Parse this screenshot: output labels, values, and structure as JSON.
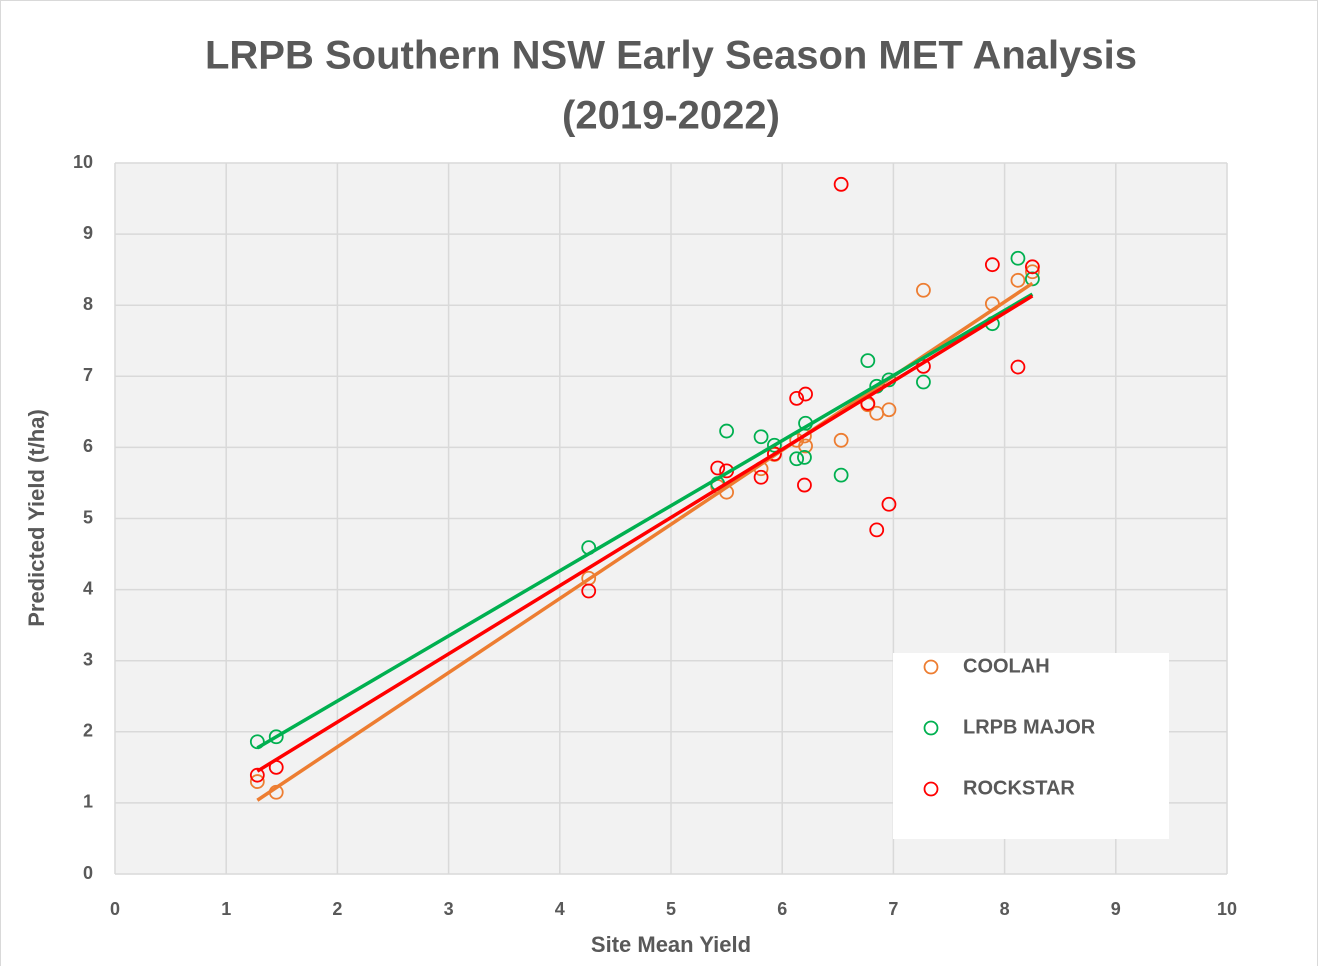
{
  "chart_data": {
    "type": "scatter",
    "title": [
      "LRPB Southern NSW Early Season MET Analysis",
      "(2019-2022)"
    ],
    "x_label": "Site Mean Yield",
    "y_label": "Predicted Yield (t/ha)",
    "x": [
      1.28,
      1.45,
      4.26,
      5.42,
      5.5,
      5.81,
      5.93,
      6.13,
      6.2,
      6.21,
      6.53,
      6.77,
      6.85,
      6.96,
      7.27,
      7.89,
      8.12,
      8.25
    ],
    "series": [
      {
        "name": "COOLAH",
        "color": "#ed7d31",
        "values": [
          1.3,
          1.15,
          4.16,
          5.45,
          5.37,
          5.7,
          5.9,
          6.1,
          6.16,
          6.02,
          6.1,
          6.6,
          6.48,
          6.53,
          8.21,
          8.02,
          8.35,
          8.47
        ]
      },
      {
        "name": "LRPB MAJOR",
        "color": "#00b050",
        "values": [
          1.86,
          1.93,
          4.59,
          5.49,
          6.23,
          6.15,
          6.03,
          5.84,
          5.86,
          6.34,
          5.61,
          7.22,
          6.86,
          6.95,
          6.92,
          7.74,
          8.66,
          8.37
        ]
      },
      {
        "name": "ROCKSTAR",
        "color": "#ff0000",
        "values": [
          1.39,
          1.5,
          3.98,
          5.71,
          5.67,
          5.58,
          5.91,
          6.69,
          5.47,
          6.75,
          9.7,
          6.62,
          4.84,
          5.2,
          7.14,
          8.57,
          7.13,
          8.54
        ]
      }
    ],
    "trendline": "linear",
    "xlim": [
      0,
      10
    ],
    "xticks": [
      0,
      1,
      2,
      3,
      4,
      5,
      6,
      7,
      8,
      9,
      10
    ],
    "ylim": [
      0,
      10
    ],
    "yticks": [
      0,
      1,
      2,
      3,
      4,
      5,
      6,
      7,
      8,
      9,
      10
    ],
    "grid": true,
    "legend": "lower right"
  }
}
